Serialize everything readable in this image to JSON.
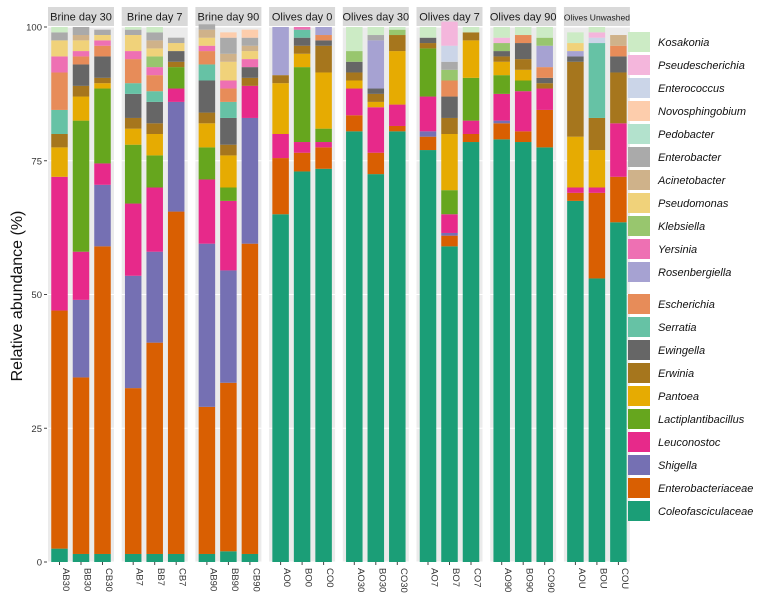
{
  "chart_data": {
    "type": "bar",
    "stacked": true,
    "ylabel": "Relative abundance (%)",
    "xlabel": "",
    "ylim": [
      0,
      100
    ],
    "yticks": [
      0,
      25,
      50,
      75,
      100
    ],
    "legend_position": "right",
    "taxa": [
      "Coleofasciculaceae",
      "Enterobacteriaceae",
      "Shigella",
      "Leuconostoc",
      "Lactiplantibacillus",
      "Pantoea",
      "Erwinia",
      "Ewingella",
      "Serratia",
      "Escherichia",
      "Rosenbergiella",
      "Yersinia",
      "Klebsiella",
      "Pseudomonas",
      "Acinetobacter",
      "Enterobacter",
      "Pedobacter",
      "Novosphingobium",
      "Enterococcus",
      "Pseudescherichia",
      "Kosakonia"
    ],
    "legend_groups": [
      [
        "Kosakonia",
        "Pseudescherichia",
        "Enterococcus",
        "Novosphingobium",
        "Pedobacter",
        "Enterobacter",
        "Acinetobacter",
        "Pseudomonas",
        "Klebsiella",
        "Yersinia",
        "Rosenbergiella"
      ],
      [
        "Escherichia",
        "Serratia",
        "Ewingella",
        "Erwinia",
        "Pantoea",
        "Lactiplantibacillus",
        "Leuconostoc",
        "Shigella",
        "Enterobacteriaceae",
        "Coleofasciculaceae"
      ]
    ],
    "colors": {
      "Coleofasciculaceae": "#1b9e77",
      "Enterobacteriaceae": "#d95f02",
      "Shigella": "#7570b3",
      "Leuconostoc": "#e7298a",
      "Lactiplantibacillus": "#66a61e",
      "Pantoea": "#e6ab02",
      "Erwinia": "#a6761d",
      "Ewingella": "#666666",
      "Serratia": "#66c2a5",
      "Escherichia": "#e78c59",
      "Rosenbergiella": "#a6a2d2",
      "Yersinia": "#ee70b3",
      "Klebsiella": "#98c66e",
      "Pseudomonas": "#f0d27a",
      "Acinetobacter": "#cfb28a",
      "Enterobacter": "#aaaaaa",
      "Pedobacter": "#b3e2cd",
      "Novosphingobium": "#fdcdac",
      "Enterococcus": "#cbd5e8",
      "Pseudescherichia": "#f4b6dc",
      "Kosakonia": "#ccebc5"
    },
    "panels": [
      {
        "title": "Brine  day  30",
        "samples": [
          {
            "name": "AB30",
            "values": [
              2.5,
              44.5,
              0,
              25,
              0,
              5.5,
              2.5,
              0,
              4.5,
              7,
              0,
              3,
              0,
              3,
              0,
              1.5,
              0,
              0,
              0,
              0,
              1
            ]
          },
          {
            "name": "BB30",
            "values": [
              1.5,
              33,
              14.5,
              9,
              24.5,
              4.5,
              2,
              4,
              0,
              1.5,
              0,
              1,
              0,
              2,
              1,
              1.5,
              0,
              0,
              0,
              0,
              0
            ]
          },
          {
            "name": "CB30",
            "values": [
              1.5,
              57.5,
              11.5,
              4,
              14,
              1,
              1,
              4,
              0,
              2,
              0,
              1,
              0,
              1,
              0,
              1,
              0,
              0,
              0,
              0,
              0
            ]
          }
        ]
      },
      {
        "title": "Brine  day  7",
        "samples": [
          {
            "name": "AB7",
            "values": [
              1.5,
              31,
              21,
              13.5,
              11,
              3,
              2,
              4.5,
              2,
              4.5,
              0,
              1.5,
              0,
              3,
              0,
              1,
              0,
              0,
              0,
              0,
              0.5
            ]
          },
          {
            "name": "BB7",
            "values": [
              1.5,
              39.5,
              17,
              12,
              6,
              4,
              2,
              4,
              2,
              3,
              0,
              1.5,
              2,
              1.5,
              1.5,
              1.5,
              0,
              0,
              0,
              0,
              1
            ]
          },
          {
            "name": "CB7",
            "values": [
              1.5,
              64,
              20.5,
              2.5,
              4,
              0,
              1,
              2,
              0,
              0,
              0,
              0,
              0,
              1.5,
              0,
              1,
              0,
              0,
              0,
              0,
              0
            ]
          }
        ]
      },
      {
        "title": "Brine  day  90",
        "samples": [
          {
            "name": "AB90",
            "values": [
              1.5,
              27.5,
              30.5,
              12,
              6,
              4.5,
              2,
              6,
              3,
              2.5,
              0,
              1,
              0,
              1.5,
              1.5,
              1,
              0,
              0,
              0,
              0,
              0
            ]
          },
          {
            "name": "BB90",
            "values": [
              2,
              31.5,
              21,
              13,
              2.5,
              6,
              2,
              5,
              3,
              2.5,
              0,
              1.5,
              0,
              3.5,
              1.5,
              3,
              0,
              1,
              0,
              0,
              0
            ]
          },
          {
            "name": "CB90",
            "values": [
              1.5,
              58,
              23.5,
              6,
              0,
              0,
              1.5,
              2,
              0,
              0,
              0,
              1.5,
              0,
              1.5,
              1,
              1.5,
              0,
              1.5,
              0,
              0,
              0
            ]
          }
        ]
      },
      {
        "title": "Olives  day  0",
        "samples": [
          {
            "name": "AO0",
            "values": [
              65,
              10.5,
              0,
              4.5,
              0,
              9.5,
              1.5,
              0,
              0,
              0,
              9,
              0,
              0,
              0,
              0,
              0,
              0,
              0,
              0,
              0,
              0
            ]
          },
          {
            "name": "BO0",
            "values": [
              73,
              3.5,
              0,
              2,
              14,
              2.5,
              1.5,
              1.5,
              1.5,
              0,
              0,
              0.5,
              0,
              0,
              0,
              0,
              0,
              0,
              0,
              0,
              0
            ]
          },
          {
            "name": "CO0",
            "values": [
              73.5,
              4,
              0,
              1,
              2.5,
              10.5,
              5,
              1,
              0,
              1,
              1.5,
              0,
              0,
              0,
              0,
              0,
              0,
              0,
              0,
              0,
              0
            ]
          }
        ]
      },
      {
        "title": "Olives day 30",
        "samples": [
          {
            "name": "AO30",
            "values": [
              80.5,
              3,
              0,
              5,
              0,
              1.5,
              1.5,
              2,
              0,
              0,
              0,
              0,
              2,
              0,
              0,
              0,
              0,
              0,
              0,
              0,
              4.5
            ]
          },
          {
            "name": "BO30",
            "values": [
              72.5,
              4,
              0,
              8.5,
              0,
              1,
              1.5,
              1,
              0,
              0,
              9,
              0,
              0,
              0,
              0,
              1,
              0,
              0,
              0,
              0,
              1.5
            ]
          },
          {
            "name": "CO30",
            "values": [
              80.5,
              1,
              0,
              4,
              0,
              10,
              3,
              0,
              0,
              0,
              0,
              0,
              1,
              0,
              0,
              0,
              0,
              0,
              0,
              0,
              0.5
            ]
          }
        ]
      },
      {
        "title": "Olives  day  7",
        "samples": [
          {
            "name": "AO7",
            "values": [
              77,
              2.5,
              1,
              6.5,
              9,
              0,
              1,
              1,
              0,
              0,
              0,
              0,
              0,
              0,
              0,
              0,
              0,
              0,
              0,
              0,
              2
            ]
          },
          {
            "name": "BO7",
            "values": [
              59,
              2,
              0.5,
              3.5,
              4.5,
              10.5,
              3,
              4,
              0,
              3,
              0,
              0,
              2,
              0,
              0,
              1.5,
              0,
              0,
              3,
              4.5,
              0
            ]
          },
          {
            "name": "CO7",
            "values": [
              78.5,
              1.5,
              0,
              2.5,
              8,
              7,
              1.5,
              0,
              0,
              0,
              0,
              0,
              0,
              0,
              0,
              0,
              0,
              0,
              0,
              0,
              1
            ]
          }
        ]
      },
      {
        "title": "Olives day 90",
        "samples": [
          {
            "name": "AO90",
            "values": [
              79,
              3,
              0.5,
              5,
              3.5,
              2.5,
              1,
              1,
              0,
              0,
              0,
              0,
              1.5,
              0,
              0,
              0,
              0,
              0,
              0,
              1,
              2
            ]
          },
          {
            "name": "BO90",
            "values": [
              78.5,
              2,
              0,
              7.5,
              2,
              2,
              2,
              3,
              0,
              1.5,
              0,
              0,
              0,
              0,
              0,
              0,
              0,
              0,
              0,
              0,
              1.5
            ]
          },
          {
            "name": "CO90",
            "values": [
              77.5,
              7,
              0,
              4,
              0,
              0,
              1,
              1,
              0,
              2,
              4,
              0,
              1.5,
              0,
              0,
              0,
              0,
              0,
              0,
              0,
              2
            ]
          }
        ]
      },
      {
        "title": "Olives Unwashed",
        "samples": [
          {
            "name": "AOU",
            "values": [
              67.5,
              1.5,
              0,
              1,
              0,
              9.5,
              14,
              1,
              0,
              0,
              1,
              0,
              0,
              1.5,
              0,
              0,
              0,
              0,
              0,
              0,
              2
            ]
          },
          {
            "name": "BOU",
            "values": [
              53,
              16,
              0,
              1,
              0,
              7,
              6,
              0,
              14,
              0,
              0,
              0,
              0,
              0,
              0,
              0,
              0,
              0,
              1,
              1,
              1
            ]
          },
          {
            "name": "COU",
            "values": [
              63.5,
              8.5,
              0,
              10,
              0,
              0,
              9.5,
              3,
              0,
              2,
              0,
              0,
              0,
              0,
              2,
              0,
              0,
              0,
              0,
              0,
              0
            ]
          }
        ]
      }
    ]
  }
}
